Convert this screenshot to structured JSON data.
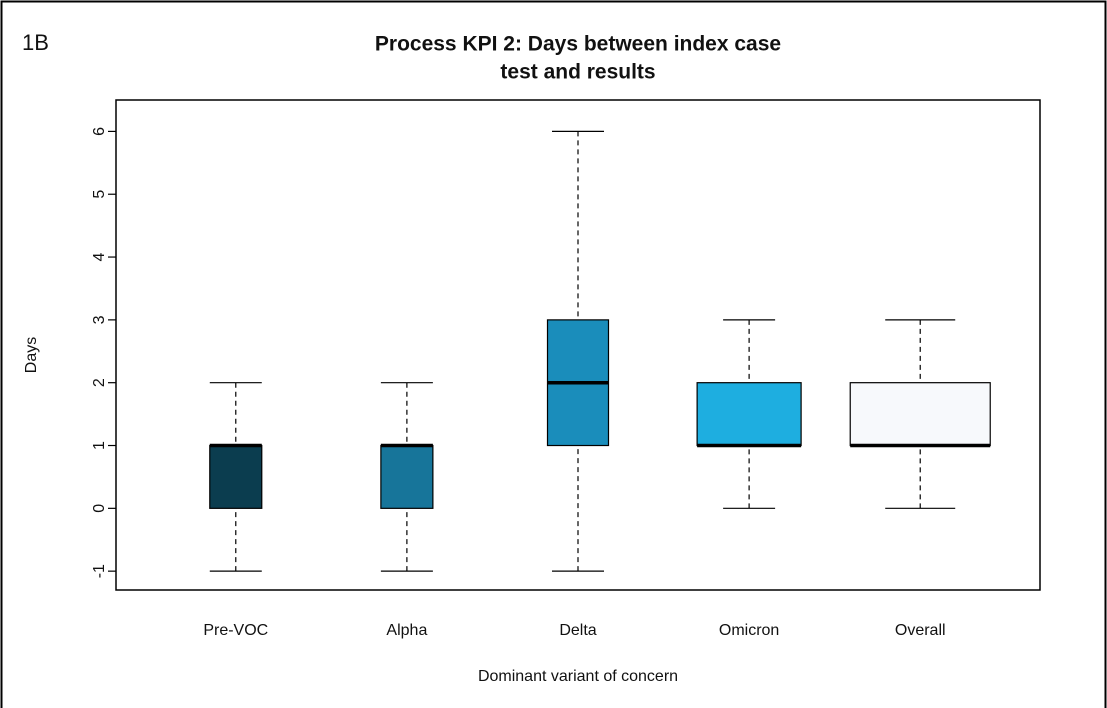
{
  "panel_label": "1B",
  "chart_data": {
    "type": "boxplot",
    "title": [
      "Process KPI 2: Days between index case",
      "test and results"
    ],
    "xlabel": "Dominant variant of concern",
    "ylabel": "Days",
    "categories": [
      "Pre-VOC",
      "Alpha",
      "Delta",
      "Omicron",
      "Overall"
    ],
    "boxes": [
      {
        "whislo": -1,
        "q1": 0,
        "med": 1,
        "q3": 1,
        "whishi": 2,
        "color": "#0b3d4f"
      },
      {
        "whislo": -1,
        "q1": 0,
        "med": 1,
        "q3": 1,
        "whishi": 2,
        "color": "#17759a"
      },
      {
        "whislo": -1,
        "q1": 1,
        "med": 2,
        "q3": 3,
        "whishi": 6,
        "color": "#1a8dbb"
      },
      {
        "whislo": 0,
        "q1": 1,
        "med": 1,
        "q3": 2,
        "whishi": 3,
        "color": "#1eaee0"
      },
      {
        "whislo": 0,
        "q1": 1,
        "med": 1,
        "q3": 2,
        "whishi": 3,
        "color": "#f7f9fc"
      }
    ],
    "ylim": [
      -1.3,
      6.5
    ],
    "yticks": [
      -1,
      0,
      1,
      2,
      3,
      4,
      5,
      6
    ]
  }
}
